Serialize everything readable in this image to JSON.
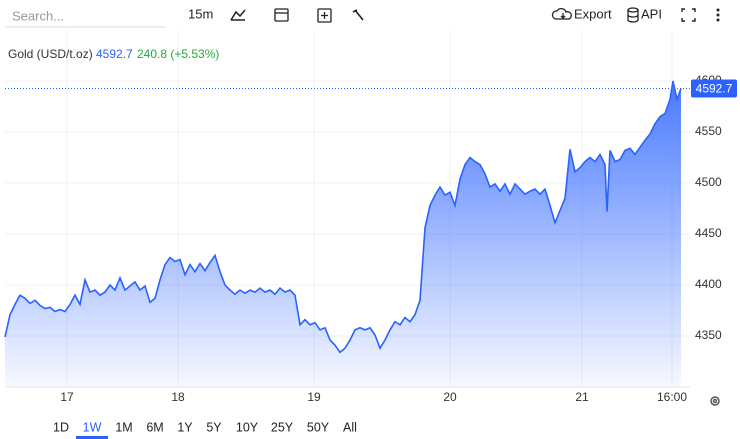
{
  "toolbar": {
    "search_placeholder": "Search...",
    "interval": "15m",
    "export": "Export",
    "api": "API"
  },
  "ranges": [
    "1D",
    "1W",
    "1M",
    "6M",
    "1Y",
    "5Y",
    "10Y",
    "25Y",
    "50Y",
    "All"
  ],
  "selected_range": "1W",
  "chart_data": {
    "type": "area",
    "title": "Gold (USD/t.oz)",
    "last": 4592.7,
    "change": "240.8 (+5.53%)",
    "color": "#2962ff",
    "grid": true,
    "x": [
      0,
      1,
      2,
      3,
      4,
      5,
      6,
      7,
      8,
      9,
      10,
      11,
      12,
      13,
      14,
      15,
      16,
      17,
      18,
      19,
      20,
      21,
      22,
      23,
      24,
      25,
      26,
      27,
      28,
      29,
      30,
      31,
      32,
      33,
      34,
      35,
      36,
      37,
      38,
      39,
      40,
      41,
      42,
      43,
      44,
      45,
      46,
      47,
      48,
      49,
      50,
      51,
      52,
      53,
      54,
      55,
      56,
      57,
      58,
      59,
      60,
      61,
      62,
      63,
      64,
      65,
      66,
      67,
      68,
      69,
      70,
      71,
      72,
      73,
      74,
      75,
      76,
      77,
      78,
      79,
      80,
      81,
      82,
      83,
      84,
      85,
      86,
      87,
      88,
      89,
      90,
      91,
      92,
      93,
      94,
      95,
      96,
      97,
      98,
      99,
      100,
      101,
      102,
      103,
      104,
      105,
      106,
      107,
      108,
      109,
      110,
      111,
      112,
      113,
      114,
      115,
      116,
      117,
      118,
      119,
      120,
      120.4,
      121,
      122,
      123,
      124,
      125,
      126,
      127,
      128,
      129,
      130,
      131,
      132,
      133,
      133.6,
      134.4,
      135.2
    ],
    "values": [
      4349,
      4371,
      4381,
      4390,
      4387,
      4382,
      4385,
      4380,
      4377,
      4378,
      4374,
      4376,
      4374,
      4381,
      4390,
      4381,
      4405,
      4393,
      4395,
      4390,
      4393,
      4400,
      4395,
      4407,
      4395,
      4399,
      4403,
      4395,
      4399,
      4383,
      4387,
      4405,
      4420,
      4427,
      4423,
      4425,
      4410,
      4420,
      4413,
      4421,
      4414,
      4422,
      4429,
      4413,
      4400,
      4395,
      4391,
      4395,
      4392,
      4395,
      4393,
      4397,
      4393,
      4395,
      4391,
      4397,
      4393,
      4395,
      4390,
      4361,
      4366,
      4361,
      4363,
      4356,
      4358,
      4346,
      4341,
      4334,
      4338,
      4346,
      4356,
      4358,
      4356,
      4358,
      4351,
      4338,
      4346,
      4356,
      4364,
      4361,
      4368,
      4364,
      4371,
      4385,
      4456,
      4478,
      4488,
      4496,
      4488,
      4491,
      4478,
      4504,
      4518,
      4525,
      4521,
      4518,
      4509,
      4496,
      4499,
      4492,
      4499,
      4489,
      4499,
      4494,
      4489,
      4492,
      4494,
      4489,
      4494,
      4478,
      4461,
      4473,
      4485,
      4533,
      4511,
      4515,
      4521,
      4525,
      4521,
      4528,
      4518,
      4472,
      4532,
      4521,
      4523,
      4532,
      4534,
      4528,
      4535,
      4542,
      4548,
      4558,
      4565,
      4568,
      4582,
      4600,
      4582,
      4592.7
    ],
    "xlim": [
      0,
      137
    ],
    "xticks": [
      {
        "value": 12.4,
        "label": "17"
      },
      {
        "value": 34.6,
        "label": "18"
      },
      {
        "value": 61.8,
        "label": "19"
      },
      {
        "value": 89,
        "label": "20"
      },
      {
        "value": 115.4,
        "label": "21"
      },
      {
        "value": 133.4,
        "label": "16:00"
      }
    ],
    "ylim": [
      4300,
      4650
    ],
    "yticks": [
      4350,
      4400,
      4450,
      4500,
      4550,
      4600
    ]
  }
}
